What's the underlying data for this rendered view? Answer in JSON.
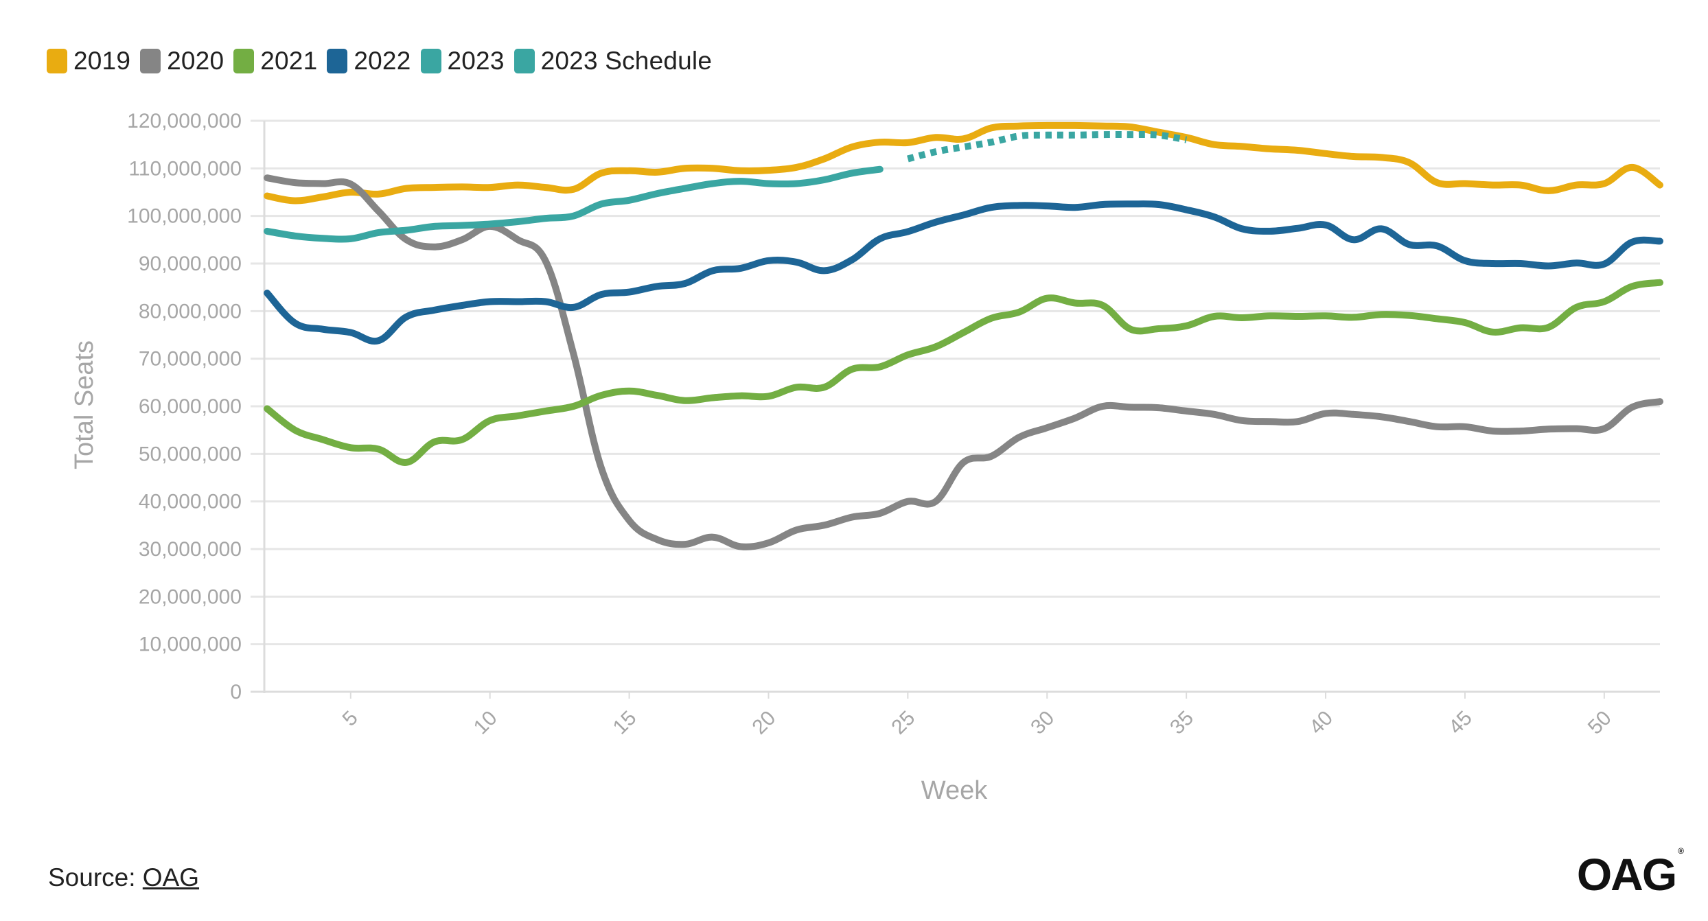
{
  "legend": [
    {
      "label": "2019",
      "color": "#e9ac11"
    },
    {
      "label": "2020",
      "color": "#858585"
    },
    {
      "label": "2021",
      "color": "#73ae43"
    },
    {
      "label": "2022",
      "color": "#1d6596"
    },
    {
      "label": "2023",
      "color": "#3aa6a2"
    },
    {
      "label": "2023 Schedule",
      "color": "#3aa6a2"
    }
  ],
  "source": {
    "prefix": "Source: ",
    "link": "OAG"
  },
  "logo": {
    "text": "OAG",
    "mark": "®"
  },
  "chart_data": {
    "type": "line",
    "title": "",
    "xlabel": "Week",
    "ylabel": "Total Seats",
    "xlim": [
      1.9,
      52
    ],
    "ylim": [
      0,
      120000000
    ],
    "x_ticks": [
      5,
      10,
      15,
      20,
      25,
      30,
      35,
      40,
      45,
      50
    ],
    "y_ticks": [
      0,
      10000000,
      20000000,
      30000000,
      40000000,
      50000000,
      60000000,
      70000000,
      80000000,
      90000000,
      100000000,
      110000000,
      120000000
    ],
    "y_tick_labels": [
      "0",
      "10,000,000",
      "20,000,000",
      "30,000,000",
      "40,000,000",
      "50,000,000",
      "60,000,000",
      "70,000,000",
      "80,000,000",
      "90,000,000",
      "100,000,000",
      "110,000,000",
      "120,000,000"
    ],
    "grid": true,
    "series": [
      {
        "name": "2019",
        "color": "#e9ac11",
        "dashed": false,
        "x": [
          2,
          3,
          4,
          5,
          6,
          7,
          8,
          9,
          10,
          11,
          12,
          13,
          14,
          15,
          16,
          17,
          18,
          19,
          20,
          21,
          22,
          23,
          24,
          25,
          26,
          27,
          28,
          29,
          30,
          31,
          32,
          33,
          34,
          35,
          36,
          37,
          38,
          39,
          40,
          41,
          42,
          43,
          44,
          45,
          46,
          47,
          48,
          49,
          50,
          51,
          52
        ],
        "y": [
          104.2,
          103.2,
          104,
          105,
          104.6,
          105.8,
          106,
          106.1,
          106,
          106.5,
          106,
          105.6,
          109,
          109.5,
          109.2,
          110,
          110,
          109.5,
          109.6,
          110.2,
          112,
          114.5,
          115.5,
          115.4,
          116.5,
          116.2,
          118.5,
          118.9,
          119,
          119,
          118.9,
          118.7,
          117.6,
          116.5,
          115,
          114.6,
          114.1,
          113.8,
          113.1,
          112.5,
          112.3,
          111.2,
          107,
          106.8,
          106.5,
          106.5,
          105.3,
          106.5,
          106.8,
          110.2,
          106.5
        ]
      },
      {
        "name": "2020",
        "color": "#858585",
        "dashed": false,
        "x": [
          2,
          3,
          4,
          5,
          6,
          7,
          8,
          9,
          10,
          11,
          12,
          13,
          14,
          15,
          16,
          17,
          18,
          19,
          20,
          21,
          22,
          23,
          24,
          25,
          26,
          27,
          28,
          29,
          30,
          31,
          32,
          33,
          34,
          35,
          36,
          37,
          38,
          39,
          40,
          41,
          42,
          43,
          44,
          45,
          46,
          47,
          48,
          49,
          50,
          51,
          52
        ],
        "y": [
          108,
          107,
          106.8,
          106.7,
          101,
          95,
          93.5,
          95,
          97.8,
          95,
          90.5,
          71,
          47,
          36,
          32,
          31,
          32.5,
          30.5,
          31.3,
          34,
          35,
          36.7,
          37.5,
          40,
          40,
          48.2,
          49.5,
          53.5,
          55.5,
          57.5,
          60,
          59.8,
          59.7,
          59,
          58.3,
          57,
          56.8,
          56.8,
          58.5,
          58.3,
          57.8,
          56.8,
          55.7,
          55.7,
          54.8,
          54.8,
          55.2,
          55.3,
          55.3,
          59.8,
          61
        ]
      },
      {
        "name": "2021",
        "color": "#73ae43",
        "dashed": false,
        "x": [
          2,
          3,
          4,
          5,
          6,
          7,
          8,
          9,
          10,
          11,
          12,
          13,
          14,
          15,
          16,
          17,
          18,
          19,
          20,
          21,
          22,
          23,
          24,
          25,
          26,
          27,
          28,
          29,
          30,
          31,
          32,
          33,
          34,
          35,
          36,
          37,
          38,
          39,
          40,
          41,
          42,
          43,
          44,
          45,
          46,
          47,
          48,
          49,
          50,
          51,
          52
        ],
        "y": [
          59.5,
          55,
          53,
          51.3,
          51,
          48.2,
          52.5,
          53,
          57,
          58,
          59,
          60,
          62.3,
          63.2,
          62.3,
          61.2,
          61.8,
          62.2,
          62.1,
          64,
          64,
          67.8,
          68.3,
          70.8,
          72.5,
          75.5,
          78.5,
          79.8,
          82.7,
          81.7,
          81.2,
          76.2,
          76.3,
          76.9,
          78.9,
          78.6,
          79,
          78.9,
          79,
          78.7,
          79.3,
          79.1,
          78.4,
          77.6,
          75.6,
          76.5,
          76.6,
          80.8,
          82,
          85.2,
          86
        ]
      },
      {
        "name": "2022",
        "color": "#1d6596",
        "dashed": false,
        "x": [
          2,
          3,
          4,
          5,
          6,
          7,
          8,
          9,
          10,
          11,
          12,
          13,
          14,
          15,
          16,
          17,
          18,
          19,
          20,
          21,
          22,
          23,
          24,
          25,
          26,
          27,
          28,
          29,
          30,
          31,
          32,
          33,
          34,
          35,
          36,
          37,
          38,
          39,
          40,
          41,
          42,
          43,
          44,
          45,
          46,
          47,
          48,
          49,
          50,
          51,
          52
        ],
        "y": [
          83.8,
          77.5,
          76.2,
          75.5,
          73.8,
          78.8,
          80.2,
          81.2,
          82,
          82,
          82,
          80.8,
          83.5,
          84,
          85.2,
          85.8,
          88.5,
          89,
          90.6,
          90.3,
          88.5,
          90.8,
          95.2,
          96.7,
          98.7,
          100.2,
          101.8,
          102.2,
          102.1,
          101.8,
          102.4,
          102.5,
          102.4,
          101.3,
          99.8,
          97.3,
          96.8,
          97.4,
          98.1,
          95,
          97.3,
          94,
          93.7,
          90.6,
          90,
          90,
          89.5,
          90.1,
          89.9,
          94.5,
          94.7
        ]
      },
      {
        "name": "2023",
        "color": "#3aa6a2",
        "dashed": false,
        "x": [
          2,
          3,
          4,
          5,
          6,
          7,
          8,
          9,
          10,
          11,
          12,
          13,
          14,
          15,
          16,
          17,
          18,
          19,
          20,
          21,
          22,
          23,
          24
        ],
        "y": [
          96.8,
          95.8,
          95.3,
          95.2,
          96.5,
          97,
          97.8,
          98,
          98.3,
          98.8,
          99.5,
          100,
          102.5,
          103.3,
          104.7,
          105.8,
          106.8,
          107.3,
          106.8,
          106.8,
          107.6,
          109,
          109.8
        ]
      },
      {
        "name": "2023 Schedule",
        "color": "#3aa6a2",
        "dashed": true,
        "x": [
          25,
          26,
          27,
          28,
          29,
          30,
          31,
          32,
          33,
          34,
          35
        ],
        "y": [
          112,
          113.5,
          114.5,
          115.5,
          116.8,
          117,
          117,
          117.1,
          117.1,
          117,
          116
        ]
      }
    ]
  }
}
